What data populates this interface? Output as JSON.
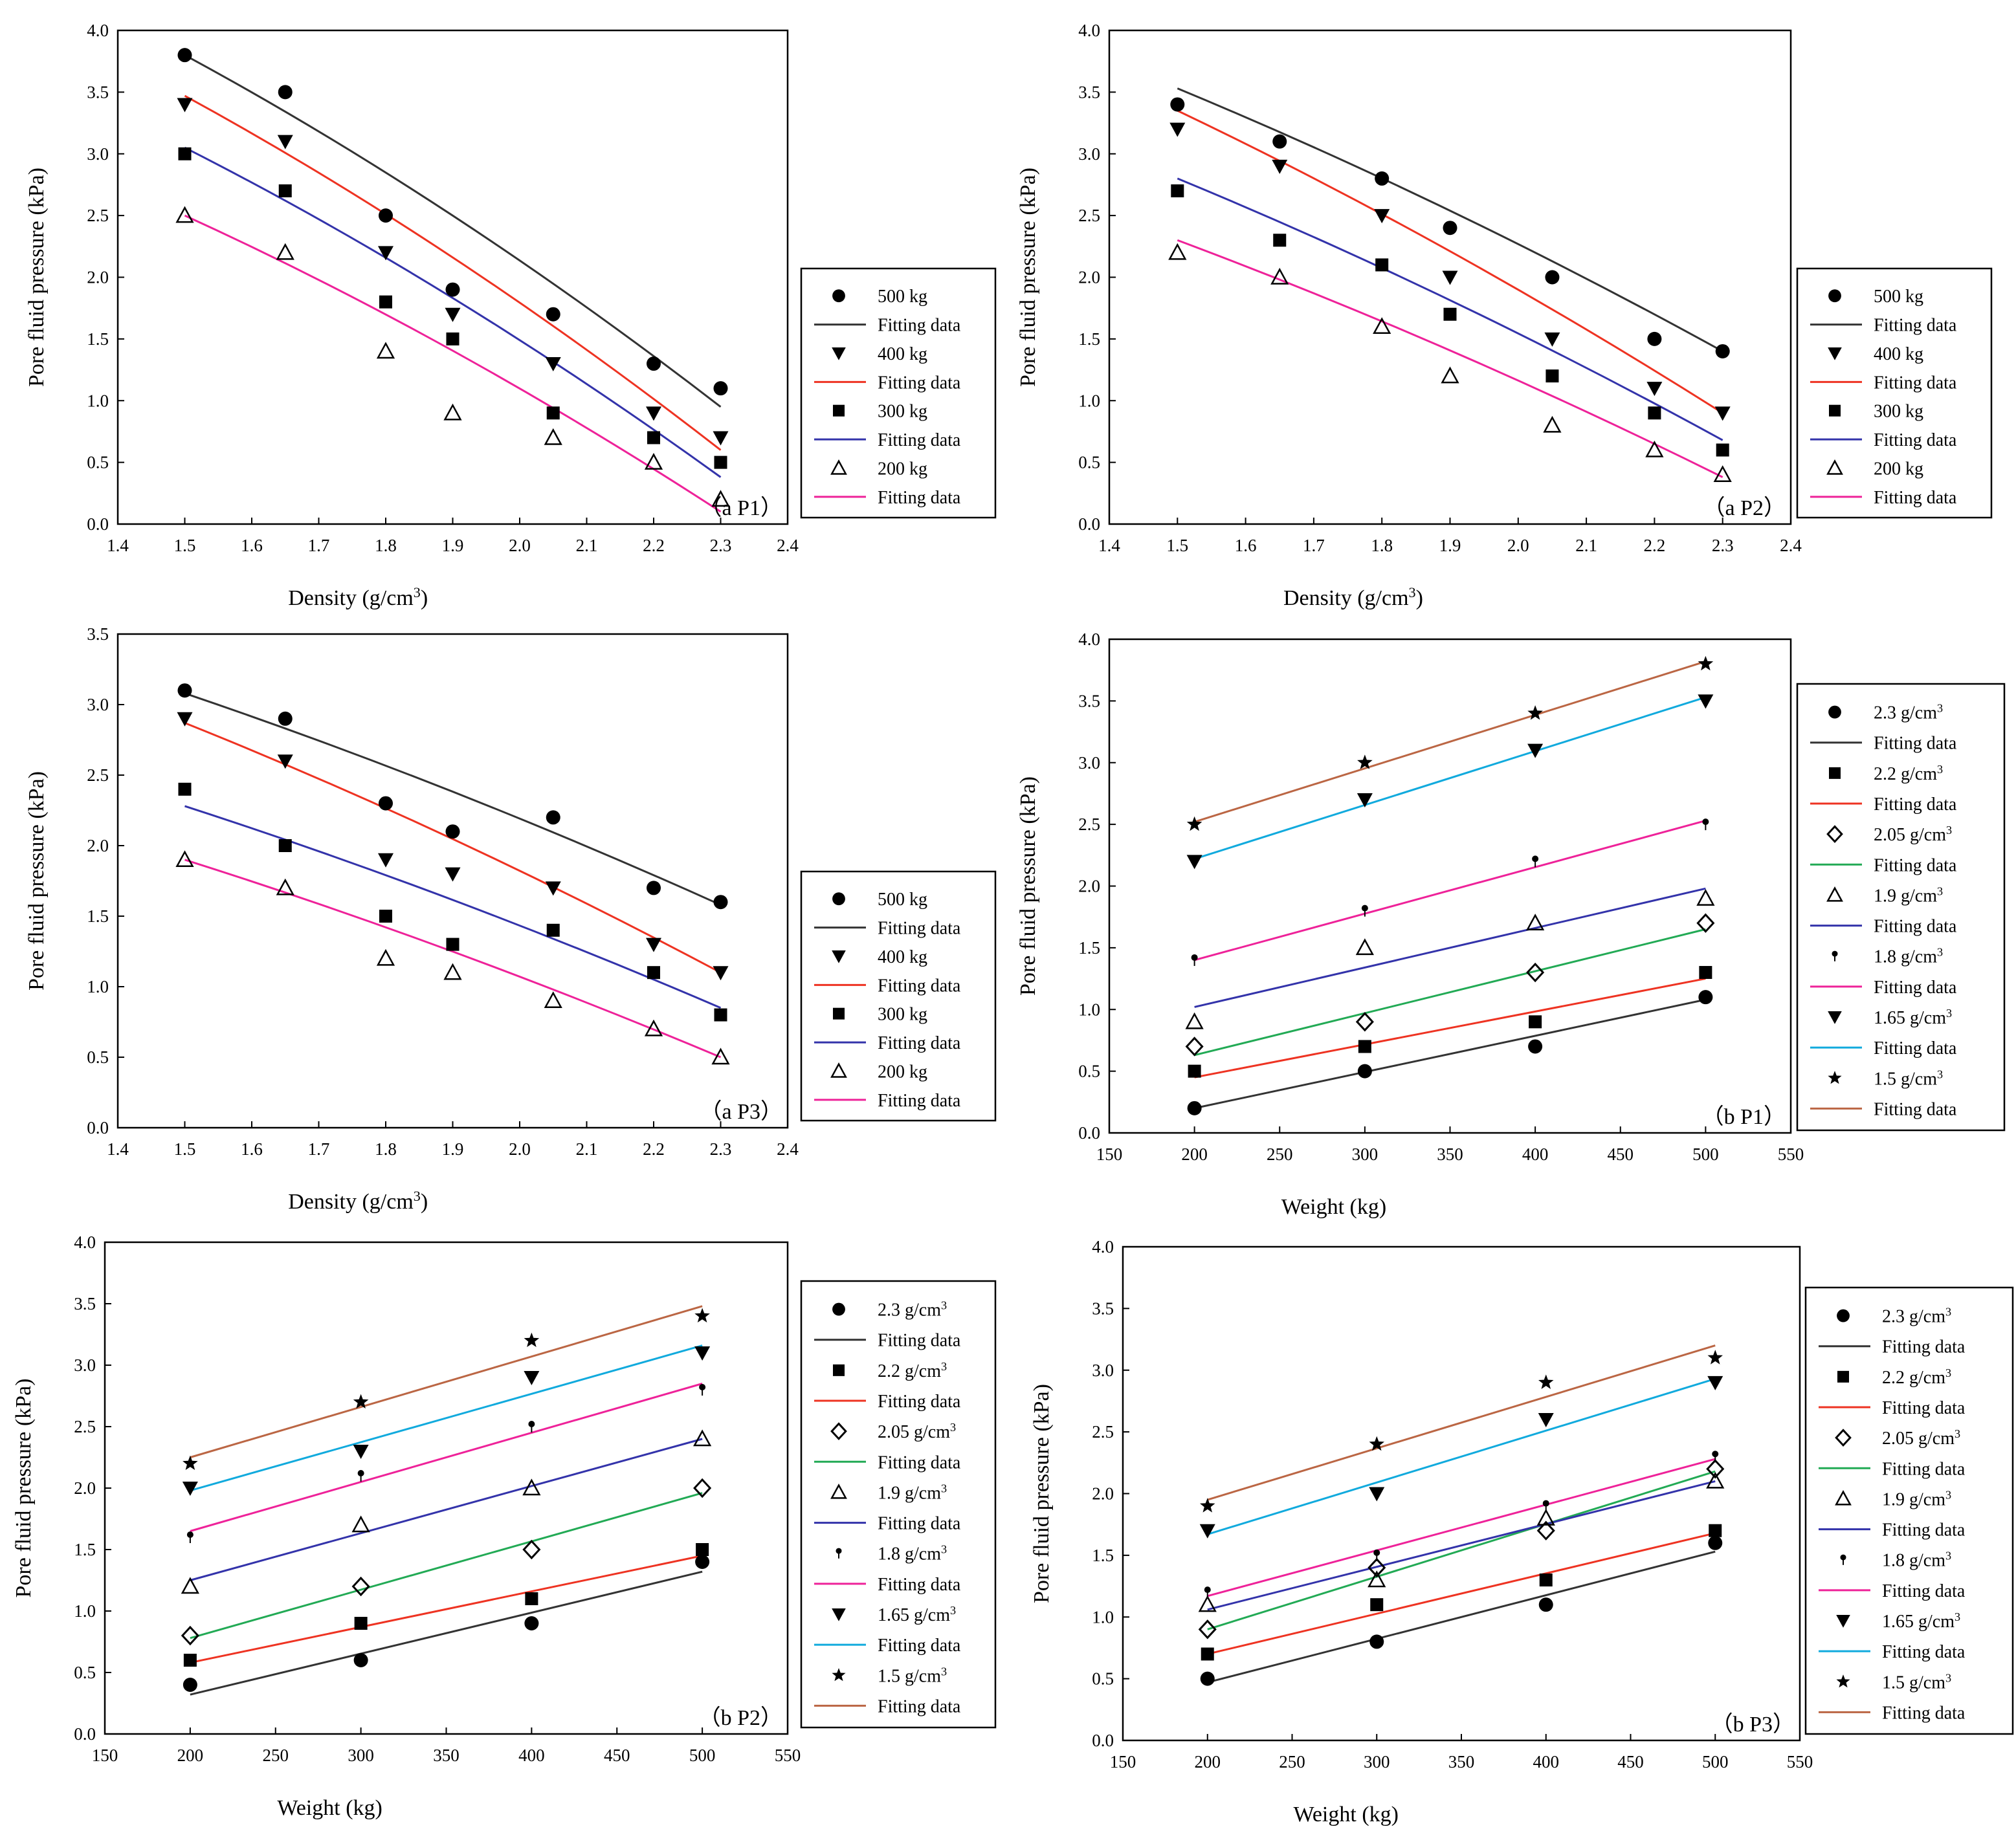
{
  "figure": {
    "background": "#ffffff"
  },
  "chart_data": [
    {
      "type": "scatter",
      "panel_label": "（a P1）",
      "xlabel": "Density (g/cm3)",
      "ylabel": "Pore fluid pressure (kPa)",
      "xlim": [
        1.4,
        2.4
      ],
      "ylim": [
        0.0,
        4.0
      ],
      "xticks": [
        "1.4",
        "1.5",
        "1.6",
        "1.7",
        "1.8",
        "1.9",
        "2.0",
        "2.1",
        "2.2",
        "2.3",
        "2.4"
      ],
      "yticks": [
        "0.0",
        "0.5",
        "1.0",
        "1.5",
        "2.0",
        "2.5",
        "3.0",
        "3.5",
        "4.0"
      ],
      "x": [
        1.5,
        1.65,
        1.8,
        1.9,
        2.05,
        2.2,
        2.3
      ],
      "series": [
        {
          "name": "500 kg",
          "marker": "circle",
          "values": [
            3.8,
            3.5,
            2.5,
            1.9,
            1.7,
            1.3,
            1.1
          ],
          "fit_name": "Fitting data",
          "fit_color": "#333333",
          "fit_x": [
            1.5,
            2.3
          ],
          "fit_y": [
            3.8,
            0.95
          ],
          "fit_curve": 0.25
        },
        {
          "name": "400 kg",
          "marker": "triangle-down",
          "values": [
            3.4,
            3.1,
            2.2,
            1.7,
            1.3,
            0.9,
            0.7
          ],
          "fit_name": "Fitting data",
          "fit_color": "#ee3322",
          "fit_x": [
            1.5,
            2.3
          ],
          "fit_y": [
            3.47,
            0.6
          ],
          "fit_curve": 0.25
        },
        {
          "name": "300 kg",
          "marker": "square",
          "values": [
            3.0,
            2.7,
            1.8,
            1.5,
            0.9,
            0.7,
            0.5
          ],
          "fit_name": "Fitting data",
          "fit_color": "#3333aa",
          "fit_x": [
            1.5,
            2.3
          ],
          "fit_y": [
            3.05,
            0.38
          ],
          "fit_curve": 0.25
        },
        {
          "name": "200 kg",
          "marker": "triangle-open",
          "values": [
            2.5,
            2.2,
            1.4,
            0.9,
            0.7,
            0.5,
            0.2
          ],
          "fit_name": "Fitting data",
          "fit_color": "#ee2299",
          "fit_x": [
            1.5,
            2.3
          ],
          "fit_y": [
            2.5,
            0.1
          ],
          "fit_curve": 0.25
        }
      ]
    },
    {
      "type": "scatter",
      "panel_label": "（a P2）",
      "xlabel": "Density (g/cm3)",
      "ylabel": "Pore fluid pressure (kPa)",
      "xlim": [
        1.4,
        2.4
      ],
      "ylim": [
        0.0,
        4.0
      ],
      "xticks": [
        "1.4",
        "1.5",
        "1.6",
        "1.7",
        "1.8",
        "1.9",
        "2.0",
        "2.1",
        "2.2",
        "2.3",
        "2.4"
      ],
      "yticks": [
        "0.0",
        "0.5",
        "1.0",
        "1.5",
        "2.0",
        "2.5",
        "3.0",
        "3.5",
        "4.0"
      ],
      "x": [
        1.5,
        1.65,
        1.8,
        1.9,
        2.05,
        2.2,
        2.3
      ],
      "series": [
        {
          "name": "500 kg",
          "marker": "circle",
          "values": [
            3.4,
            3.1,
            2.8,
            2.4,
            2.0,
            1.5,
            1.4
          ],
          "fit_name": "Fitting data",
          "fit_color": "#333333",
          "fit_x": [
            1.5,
            2.3
          ],
          "fit_y": [
            3.53,
            1.4
          ],
          "fit_curve": 0.2
        },
        {
          "name": "400 kg",
          "marker": "triangle-down",
          "values": [
            3.2,
            2.9,
            2.5,
            2.0,
            1.5,
            1.1,
            0.9
          ],
          "fit_name": "Fitting data",
          "fit_color": "#ee3322",
          "fit_x": [
            1.5,
            2.3
          ],
          "fit_y": [
            3.35,
            0.9
          ],
          "fit_curve": 0.2
        },
        {
          "name": "300 kg",
          "marker": "square",
          "values": [
            2.7,
            2.3,
            2.1,
            1.7,
            1.2,
            0.9,
            0.6
          ],
          "fit_name": "Fitting data",
          "fit_color": "#3333aa",
          "fit_x": [
            1.5,
            2.3
          ],
          "fit_y": [
            2.8,
            0.68
          ],
          "fit_curve": 0.2
        },
        {
          "name": "200 kg",
          "marker": "triangle-open",
          "values": [
            2.2,
            2.0,
            1.6,
            1.2,
            0.8,
            0.6,
            0.4
          ],
          "fit_name": "Fitting data",
          "fit_color": "#ee2299",
          "fit_x": [
            1.5,
            2.3
          ],
          "fit_y": [
            2.3,
            0.38
          ],
          "fit_curve": 0.2
        }
      ]
    },
    {
      "type": "scatter",
      "panel_label": "（a P3）",
      "xlabel": "Density (g/cm3)",
      "ylabel": "Pore fluid pressure (kPa)",
      "xlim": [
        1.4,
        2.4
      ],
      "ylim": [
        0.0,
        3.5
      ],
      "xticks": [
        "1.4",
        "1.5",
        "1.6",
        "1.7",
        "1.8",
        "1.9",
        "2.0",
        "2.1",
        "2.2",
        "2.3",
        "2.4"
      ],
      "yticks": [
        "0.0",
        "0.5",
        "1.0",
        "1.5",
        "2.0",
        "2.5",
        "3.0",
        "3.5"
      ],
      "x": [
        1.5,
        1.65,
        1.8,
        1.9,
        2.05,
        2.2,
        2.3
      ],
      "series": [
        {
          "name": "500 kg",
          "marker": "circle",
          "values": [
            3.1,
            2.9,
            2.3,
            2.1,
            2.2,
            1.7,
            1.6
          ],
          "fit_name": "Fitting data",
          "fit_color": "#333333",
          "fit_x": [
            1.5,
            2.3
          ],
          "fit_y": [
            3.08,
            1.58
          ],
          "fit_curve": 0.2
        },
        {
          "name": "400 kg",
          "marker": "triangle-down",
          "values": [
            2.9,
            2.6,
            1.9,
            1.8,
            1.7,
            1.3,
            1.1
          ],
          "fit_name": "Fitting data",
          "fit_color": "#ee3322",
          "fit_x": [
            1.5,
            2.3
          ],
          "fit_y": [
            2.87,
            1.1
          ],
          "fit_curve": 0.2
        },
        {
          "name": "300 kg",
          "marker": "square",
          "values": [
            2.4,
            2.0,
            1.5,
            1.3,
            1.4,
            1.1,
            0.8
          ],
          "fit_name": "Fitting data",
          "fit_color": "#3333aa",
          "fit_x": [
            1.5,
            2.3
          ],
          "fit_y": [
            2.28,
            0.85
          ],
          "fit_curve": 0.2
        },
        {
          "name": "200 kg",
          "marker": "triangle-open",
          "values": [
            1.9,
            1.7,
            1.2,
            1.1,
            0.9,
            0.7,
            0.5
          ],
          "fit_name": "Fitting data",
          "fit_color": "#ee2299",
          "fit_x": [
            1.5,
            2.3
          ],
          "fit_y": [
            1.9,
            0.5
          ],
          "fit_curve": 0.2
        }
      ]
    },
    {
      "type": "scatter",
      "panel_label": "（b P1）",
      "xlabel": "Weight (kg)",
      "ylabel": "Pore fluid pressure (kPa)",
      "xlim": [
        150,
        550
      ],
      "ylim": [
        0.0,
        4.0
      ],
      "xticks": [
        "150",
        "200",
        "250",
        "300",
        "350",
        "400",
        "450",
        "500",
        "550"
      ],
      "yticks": [
        "0.0",
        "0.5",
        "1.0",
        "1.5",
        "2.0",
        "2.5",
        "3.0",
        "3.5",
        "4.0"
      ],
      "x": [
        200,
        300,
        400,
        500
      ],
      "series": [
        {
          "name": "2.3 g/cm3",
          "marker": "circle",
          "values": [
            0.2,
            0.5,
            0.7,
            1.1
          ],
          "fit_name": "Fitting data",
          "fit_color": "#333333",
          "fit_x": [
            200,
            500
          ],
          "fit_y": [
            0.2,
            1.08
          ],
          "fit_curve": 0
        },
        {
          "name": "2.2 g/cm3",
          "marker": "square",
          "values": [
            0.5,
            0.7,
            0.9,
            1.3
          ],
          "fit_name": "Fitting data",
          "fit_color": "#ee3322",
          "fit_x": [
            200,
            500
          ],
          "fit_y": [
            0.45,
            1.25
          ],
          "fit_curve": 0
        },
        {
          "name": "2.05 g/cm3",
          "marker": "diamond-open",
          "values": [
            0.7,
            0.9,
            1.3,
            1.7
          ],
          "fit_name": "Fitting data",
          "fit_color": "#22aa55",
          "fit_x": [
            200,
            500
          ],
          "fit_y": [
            0.63,
            1.65
          ],
          "fit_curve": 0
        },
        {
          "name": "1.9 g/cm3",
          "marker": "triangle-open",
          "values": [
            0.9,
            1.5,
            1.7,
            1.9
          ],
          "fit_name": "Fitting data",
          "fit_color": "#3333aa",
          "fit_x": [
            200,
            500
          ],
          "fit_y": [
            1.02,
            1.98
          ],
          "fit_curve": 0
        },
        {
          "name": "1.8 g/cm3",
          "marker": "small-dot",
          "values": [
            1.4,
            1.8,
            2.2,
            2.5
          ],
          "fit_name": "Fitting data",
          "fit_color": "#ee2299",
          "fit_x": [
            200,
            500
          ],
          "fit_y": [
            1.4,
            2.53
          ],
          "fit_curve": 0
        },
        {
          "name": "1.65 g/cm3",
          "marker": "triangle-down",
          "values": [
            2.2,
            2.7,
            3.1,
            3.5
          ],
          "fit_name": "Fitting data",
          "fit_color": "#11aadd",
          "fit_x": [
            200,
            500
          ],
          "fit_y": [
            2.22,
            3.53
          ],
          "fit_curve": 0
        },
        {
          "name": "1.5 g/cm3",
          "marker": "star",
          "values": [
            2.5,
            3.0,
            3.4,
            3.8
          ],
          "fit_name": "Fitting data",
          "fit_color": "#bb6644",
          "fit_x": [
            200,
            500
          ],
          "fit_y": [
            2.52,
            3.82
          ],
          "fit_curve": 0
        }
      ]
    },
    {
      "type": "scatter",
      "panel_label": "（b P2）",
      "xlabel": "Weight (kg)",
      "ylabel": "Pore fluid pressure (kPa)",
      "xlim": [
        150,
        550
      ],
      "ylim": [
        0.0,
        4.0
      ],
      "xticks": [
        "150",
        "200",
        "250",
        "300",
        "350",
        "400",
        "450",
        "500",
        "550"
      ],
      "yticks": [
        "0.0",
        "0.5",
        "1.0",
        "1.5",
        "2.0",
        "2.5",
        "3.0",
        "3.5",
        "4.0"
      ],
      "x": [
        200,
        300,
        400,
        500
      ],
      "series": [
        {
          "name": "2.3 g/cm3",
          "marker": "circle",
          "values": [
            0.4,
            0.6,
            0.9,
            1.4
          ],
          "fit_name": "Fitting data",
          "fit_color": "#333333",
          "fit_x": [
            200,
            500
          ],
          "fit_y": [
            0.32,
            1.32
          ],
          "fit_curve": 0
        },
        {
          "name": "2.2 g/cm3",
          "marker": "square",
          "values": [
            0.6,
            0.9,
            1.1,
            1.5
          ],
          "fit_name": "Fitting data",
          "fit_color": "#ee3322",
          "fit_x": [
            200,
            500
          ],
          "fit_y": [
            0.58,
            1.45
          ],
          "fit_curve": 0
        },
        {
          "name": "2.05 g/cm3",
          "marker": "diamond-open",
          "values": [
            0.8,
            1.2,
            1.5,
            2.0
          ],
          "fit_name": "Fitting data",
          "fit_color": "#22aa55",
          "fit_x": [
            200,
            500
          ],
          "fit_y": [
            0.78,
            1.96
          ],
          "fit_curve": 0
        },
        {
          "name": "1.9 g/cm3",
          "marker": "triangle-open",
          "values": [
            1.2,
            1.7,
            2.0,
            2.4
          ],
          "fit_name": "Fitting data",
          "fit_color": "#3333aa",
          "fit_x": [
            200,
            500
          ],
          "fit_y": [
            1.25,
            2.4
          ],
          "fit_curve": 0
        },
        {
          "name": "1.8 g/cm3",
          "marker": "small-dot",
          "values": [
            1.6,
            2.1,
            2.5,
            2.8
          ],
          "fit_name": "Fitting data",
          "fit_color": "#ee2299",
          "fit_x": [
            200,
            500
          ],
          "fit_y": [
            1.65,
            2.85
          ],
          "fit_curve": 0
        },
        {
          "name": "1.65 g/cm3",
          "marker": "triangle-down",
          "values": [
            2.0,
            2.3,
            2.9,
            3.1
          ],
          "fit_name": "Fitting data",
          "fit_color": "#11aadd",
          "fit_x": [
            200,
            500
          ],
          "fit_y": [
            1.98,
            3.16
          ],
          "fit_curve": 0
        },
        {
          "name": "1.5 g/cm3",
          "marker": "star",
          "values": [
            2.2,
            2.7,
            3.2,
            3.4
          ],
          "fit_name": "Fitting data",
          "fit_color": "#bb6644",
          "fit_x": [
            200,
            500
          ],
          "fit_y": [
            2.25,
            3.48
          ],
          "fit_curve": 0
        }
      ]
    },
    {
      "type": "scatter",
      "panel_label": "（b P3）",
      "xlabel": "Weight (kg)",
      "ylabel": "Pore fluid pressure (kPa)",
      "xlim": [
        150,
        550
      ],
      "ylim": [
        0.0,
        4.0
      ],
      "xticks": [
        "150",
        "200",
        "250",
        "300",
        "350",
        "400",
        "450",
        "500",
        "550"
      ],
      "yticks": [
        "0.0",
        "0.5",
        "1.0",
        "1.5",
        "2.0",
        "2.5",
        "3.0",
        "3.5",
        "4.0"
      ],
      "x": [
        200,
        300,
        400,
        500
      ],
      "series": [
        {
          "name": "2.3 g/cm3",
          "marker": "circle",
          "values": [
            0.5,
            0.8,
            1.1,
            1.6
          ],
          "fit_name": "Fitting data",
          "fit_color": "#333333",
          "fit_x": [
            200,
            500
          ],
          "fit_y": [
            0.47,
            1.53
          ],
          "fit_curve": 0
        },
        {
          "name": "2.2 g/cm3",
          "marker": "square",
          "values": [
            0.7,
            1.1,
            1.3,
            1.7
          ],
          "fit_name": "Fitting data",
          "fit_color": "#ee3322",
          "fit_x": [
            200,
            500
          ],
          "fit_y": [
            0.7,
            1.68
          ],
          "fit_curve": 0
        },
        {
          "name": "2.05 g/cm3",
          "marker": "diamond-open",
          "values": [
            0.9,
            1.4,
            1.7,
            2.2
          ],
          "fit_name": "Fitting data",
          "fit_color": "#22aa55",
          "fit_x": [
            200,
            500
          ],
          "fit_y": [
            0.9,
            2.18
          ],
          "fit_curve": 0
        },
        {
          "name": "1.9 g/cm3",
          "marker": "triangle-open",
          "values": [
            1.1,
            1.3,
            1.8,
            2.1
          ],
          "fit_name": "Fitting data",
          "fit_color": "#3333aa",
          "fit_x": [
            200,
            500
          ],
          "fit_y": [
            1.06,
            2.1
          ],
          "fit_curve": 0
        },
        {
          "name": "1.8 g/cm3",
          "marker": "small-dot",
          "values": [
            1.2,
            1.5,
            1.9,
            2.3
          ],
          "fit_name": "Fitting data",
          "fit_color": "#ee2299",
          "fit_x": [
            200,
            500
          ],
          "fit_y": [
            1.17,
            2.28
          ],
          "fit_curve": 0
        },
        {
          "name": "1.65 g/cm3",
          "marker": "triangle-down",
          "values": [
            1.7,
            2.0,
            2.6,
            2.9
          ],
          "fit_name": "Fitting data",
          "fit_color": "#11aadd",
          "fit_x": [
            200,
            500
          ],
          "fit_y": [
            1.67,
            2.93
          ],
          "fit_curve": 0
        },
        {
          "name": "1.5 g/cm3",
          "marker": "star",
          "values": [
            1.9,
            2.4,
            2.9,
            3.1
          ],
          "fit_name": "Fitting data",
          "fit_color": "#bb6644",
          "fit_x": [
            200,
            500
          ],
          "fit_y": [
            1.95,
            3.2
          ],
          "fit_curve": 0
        }
      ]
    }
  ]
}
